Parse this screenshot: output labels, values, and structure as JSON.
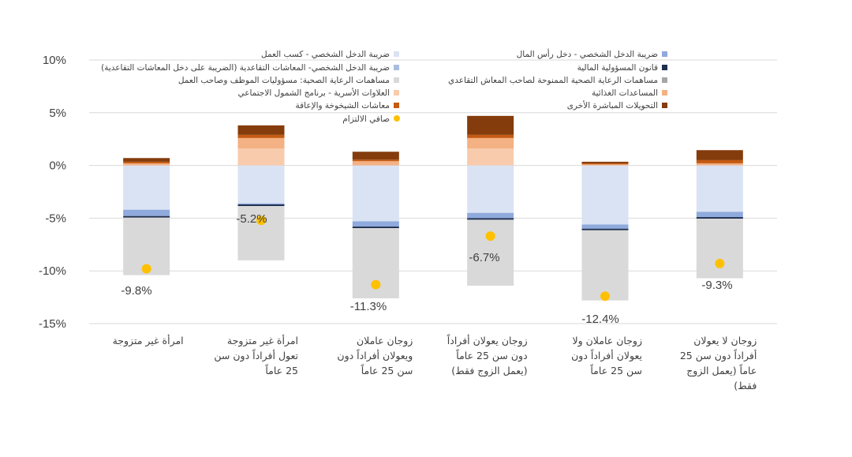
{
  "chart_data": {
    "type": "bar",
    "stacked": true,
    "y_unit": "%",
    "ylim": [
      -15,
      10
    ],
    "yticks": [
      10,
      5,
      0,
      -5,
      -10,
      -15
    ],
    "ytick_labels": [
      "10%",
      "5%",
      "0%",
      "-5%",
      "-10%",
      "-15%"
    ],
    "grid": true,
    "legend_position": "top",
    "categories": [
      [
        "امرأة غير متزوجة"
      ],
      [
        "امرأة غير متزوجة",
        "تعول أفراداً دون سن",
        "25 عاماً"
      ],
      [
        "زوجان عاملان",
        "ويعولان أفراداً دون",
        "سن 25 عاماً"
      ],
      [
        "زوجان يعولان أفراداً",
        "دون سن 25 عاماً",
        "(يعمل الزوج فقط)"
      ],
      [
        "زوجان عاملان ولا",
        "يعولان أفراداً دون",
        "سن 25 عاماً"
      ],
      [
        "زوجان لا يعولان",
        "أفراداً دون سن 25",
        "عاماً (يعمل الزوج",
        "فقط)"
      ]
    ],
    "series": [
      {
        "name": "ضريبة الدخل الشخصي - كسب العمل",
        "color": "#dae3f3",
        "values": [
          -4.2,
          -3.6,
          -5.3,
          -4.5,
          -5.6,
          -4.4
        ]
      },
      {
        "name": "ضريبة الدخل الشخصي - دخل رأس المال",
        "color": "#8faadc",
        "values": [
          -0.6,
          -0.1,
          -0.5,
          -0.5,
          -0.4,
          -0.5
        ]
      },
      {
        "name": "ضريبة الدخل الشخصي- المعاشات التقاعدية (الضريبة على دخل المعاشات التقاعدية)",
        "color": "#a9bde0",
        "values": [
          0,
          0,
          0,
          0,
          0,
          0
        ]
      },
      {
        "name": "قانون المسؤولية المالية",
        "color": "#1f2f4f",
        "values": [
          -0.15,
          -0.15,
          -0.15,
          -0.15,
          -0.15,
          -0.15
        ]
      },
      {
        "name": "مساهمات الرعاية الصحية: مسؤوليات الموظف وصاحب العمل",
        "color": "#d9d9d9",
        "values": [
          -5.45,
          -5.15,
          -6.65,
          -6.25,
          -6.65,
          -5.65
        ]
      },
      {
        "name": "مساهمات الرعاية الصحية الممنوحة لصاحب المعاش التقاعدي",
        "color": "#a6a6a6",
        "values": [
          0,
          0,
          0,
          0,
          0,
          0
        ]
      },
      {
        "name": "العلاوات الأسرية - برنامج الشمول الاجتماعي",
        "color": "#f8cbad",
        "values": [
          0,
          1.6,
          0,
          1.6,
          0,
          0
        ]
      },
      {
        "name": "المساعدات الغذائية",
        "color": "#f4b183",
        "values": [
          0.2,
          1.0,
          0.4,
          1.0,
          0.1,
          0.2
        ]
      },
      {
        "name": "معاشات الشيخوخة والإعاقة",
        "color": "#c55a11",
        "values": [
          0.15,
          0.3,
          0.15,
          0.3,
          0.1,
          0.3
        ]
      },
      {
        "name": "التحويلات المباشرة الأخرى",
        "color": "#843c0c",
        "values": [
          0.35,
          0.9,
          0.75,
          1.8,
          0.15,
          0.95
        ]
      }
    ],
    "net": {
      "name": "صافي الالتزام",
      "color": "#ffc000",
      "values": [
        -9.8,
        -5.2,
        -11.3,
        -6.7,
        -12.4,
        -9.3
      ],
      "labels": [
        "-9.8%",
        "-5.2%",
        "-11.3%",
        "-6.7%",
        "-12.4%",
        "-9.3%"
      ]
    }
  }
}
